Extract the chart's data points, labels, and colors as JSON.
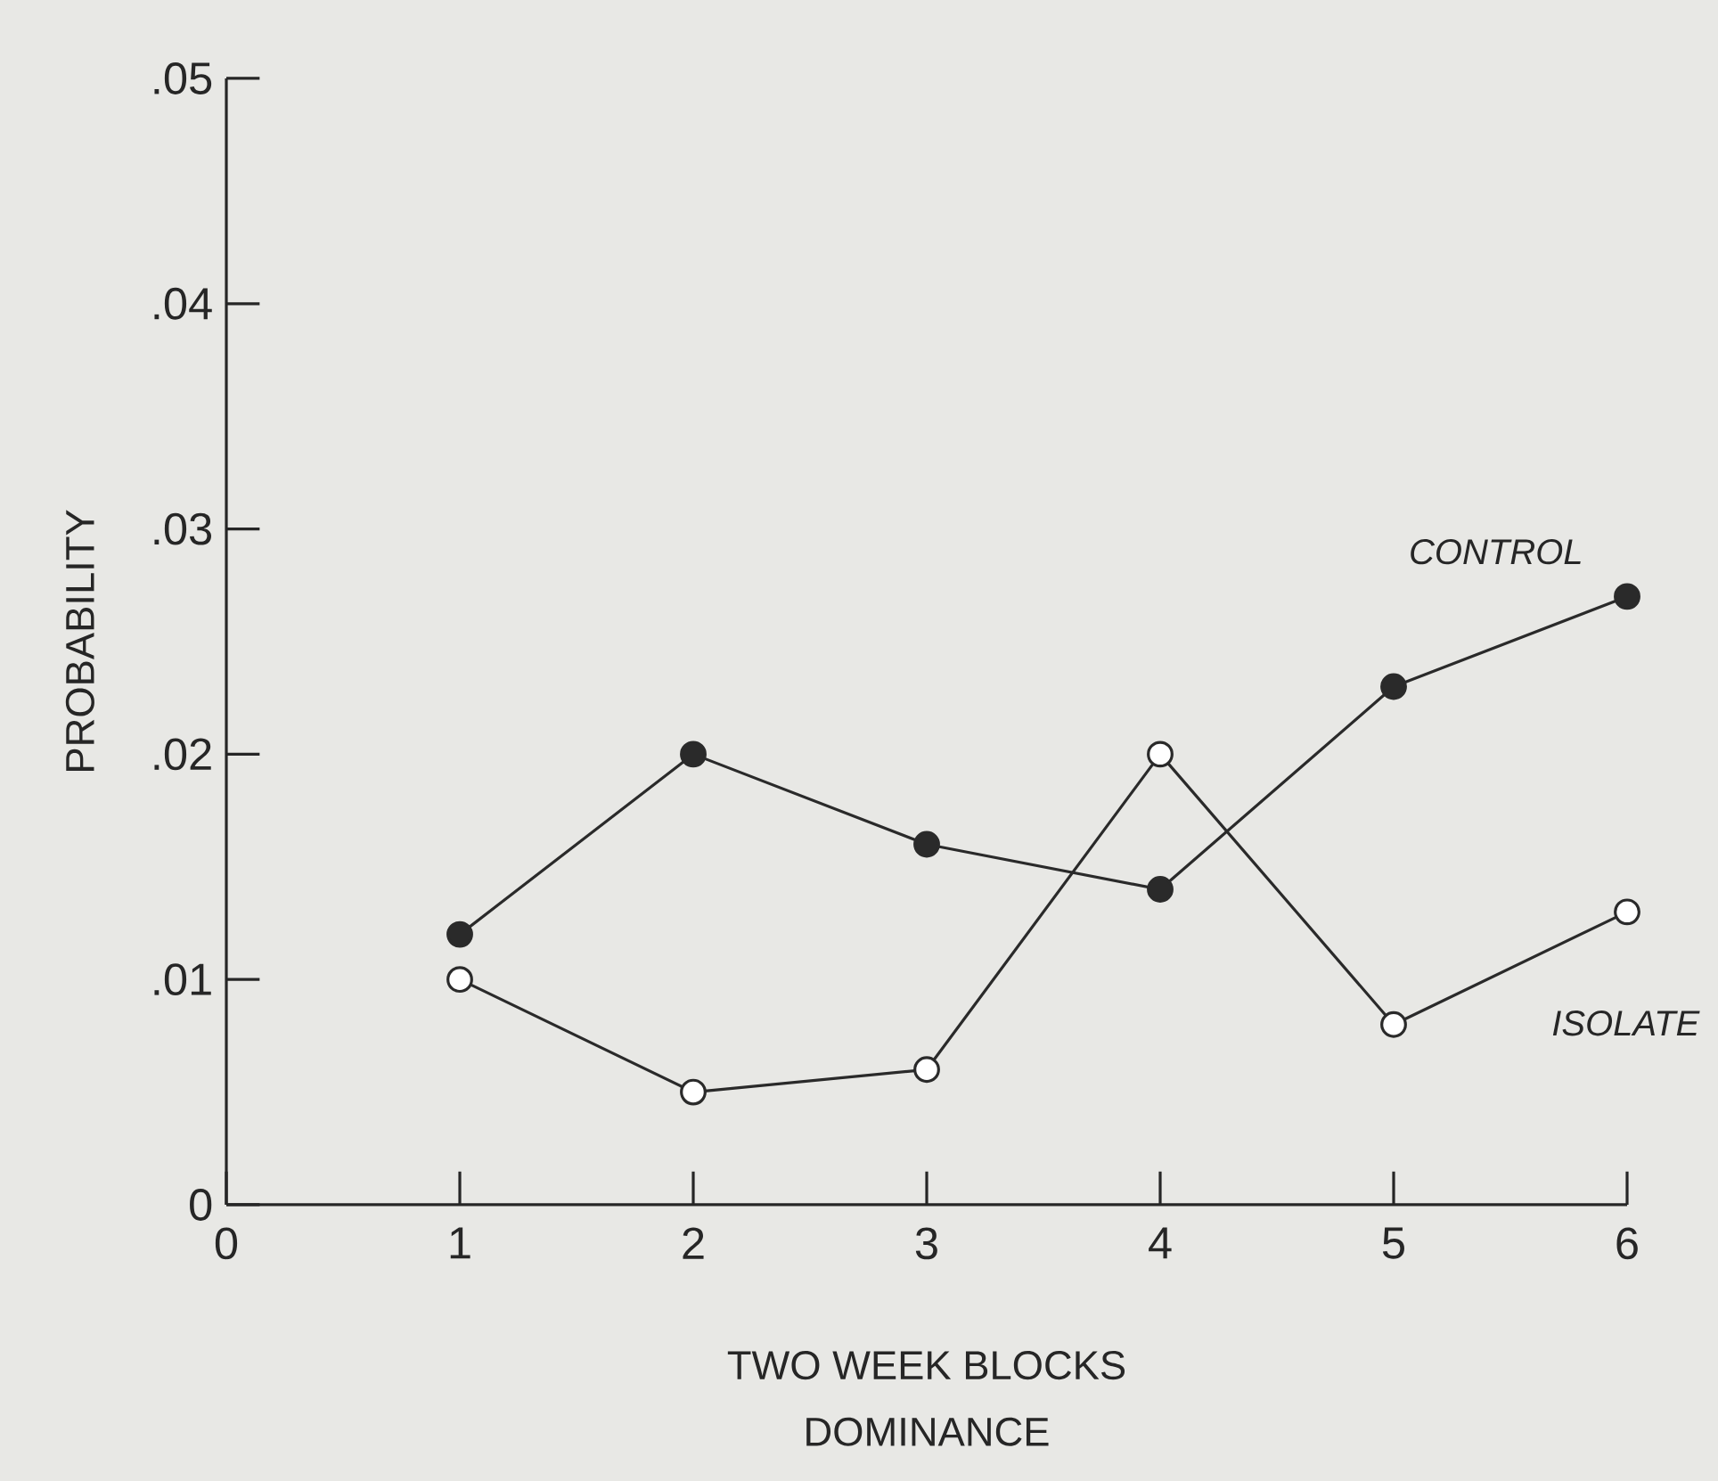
{
  "chart_data": {
    "type": "line",
    "title": "DOMINANCE",
    "xlabel": "TWO WEEK BLOCKS",
    "ylabel": "PROBABILITY",
    "x": [
      1,
      2,
      3,
      4,
      5,
      6
    ],
    "series": [
      {
        "name": "CONTROL",
        "color": "#2a2a2a",
        "values": [
          0.012,
          0.02,
          0.016,
          0.014,
          0.023,
          0.027
        ]
      },
      {
        "name": "ISOLATE",
        "color": "#2a2a2a",
        "values": [
          0.01,
          0.005,
          0.006,
          0.02,
          0.008,
          0.013
        ]
      }
    ],
    "xlim": [
      0,
      6
    ],
    "xticks": [
      0,
      1,
      2,
      3,
      4,
      5,
      6
    ],
    "ylim": [
      0,
      0.05
    ],
    "yticks": [
      {
        "value": 0,
        "label": "0"
      },
      {
        "value": 0.01,
        "label": ".01"
      },
      {
        "value": 0.02,
        "label": ".02"
      },
      {
        "value": 0.03,
        "label": ".03"
      },
      {
        "value": 0.04,
        "label": ".04"
      },
      {
        "value": 0.05,
        "label": ".05"
      }
    ],
    "marker": "circle",
    "line_style": "solid",
    "grid": false,
    "legend": false
  }
}
